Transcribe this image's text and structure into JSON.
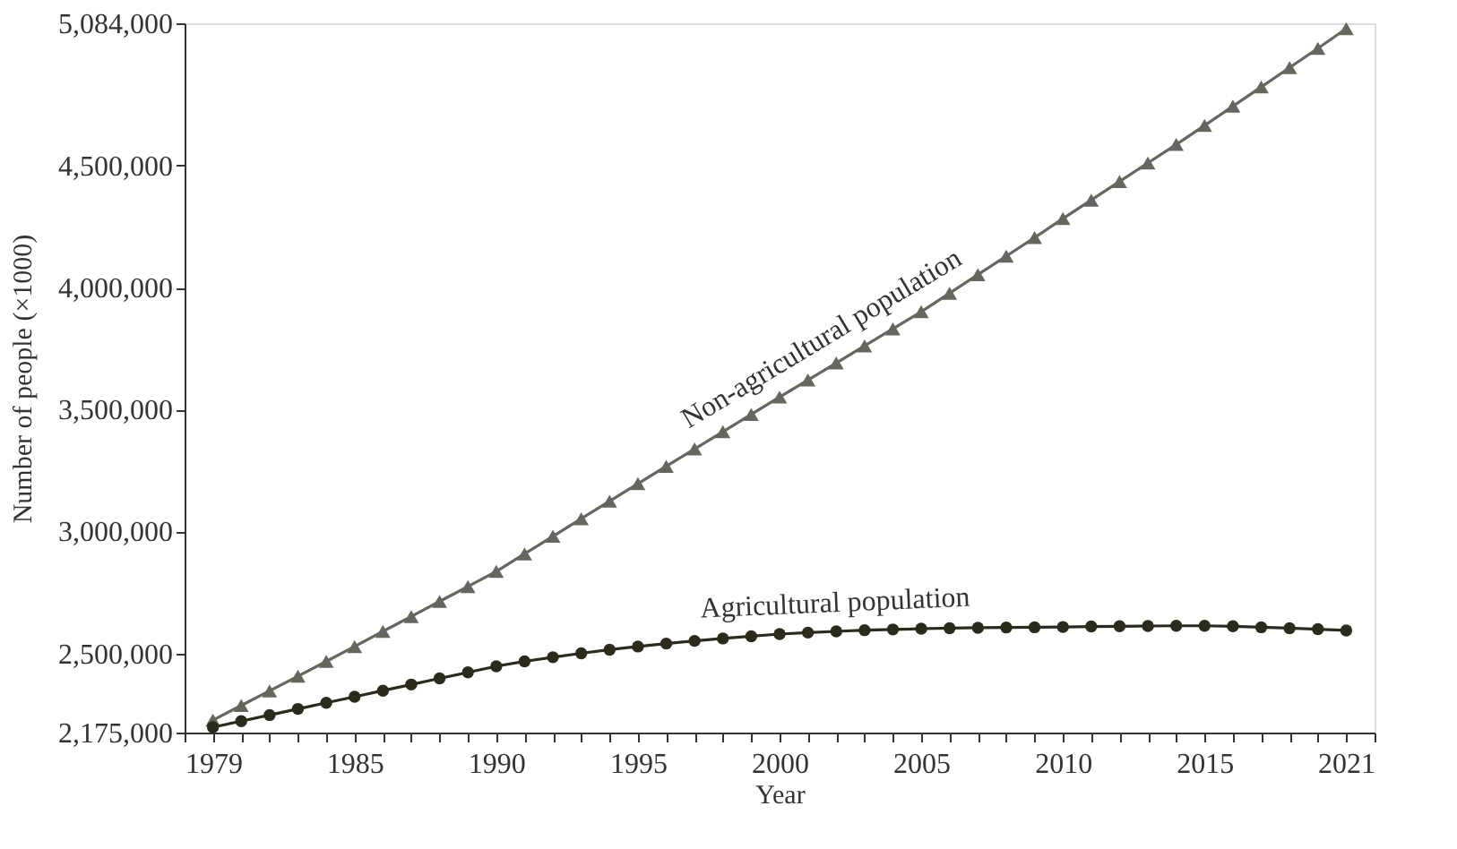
{
  "chart_data": {
    "type": "line",
    "xlabel": "Year",
    "ylabel": "Number of people (×1000)",
    "x": [
      1980,
      1981,
      1982,
      1983,
      1984,
      1985,
      1986,
      1987,
      1988,
      1989,
      1990,
      1991,
      1992,
      1993,
      1994,
      1995,
      1996,
      1997,
      1998,
      1999,
      2000,
      2001,
      2002,
      2003,
      2004,
      2005,
      2006,
      2007,
      2008,
      2009,
      2010,
      2011,
      2012,
      2013,
      2014,
      2015,
      2016,
      2017,
      2018,
      2019,
      2020
    ],
    "series": [
      {
        "name": "Non-agricultural population",
        "color": "#66665e",
        "marker": "triangle",
        "values": [
          2226000,
          2286000,
          2346000,
          2406000,
          2467000,
          2528000,
          2590000,
          2651000,
          2713000,
          2774000,
          2836000,
          2908000,
          2980000,
          3052000,
          3124000,
          3196000,
          3267000,
          3338000,
          3409000,
          3480000,
          3551000,
          3621000,
          3691000,
          3761000,
          3831000,
          3901000,
          3977000,
          4053000,
          4129000,
          4205000,
          4283000,
          4359000,
          4435000,
          4511000,
          4587000,
          4665000,
          4744000,
          4823000,
          4902000,
          4981000,
          5062000
        ]
      },
      {
        "name": "Agricultural population",
        "color": "#2b2a1c",
        "marker": "circle",
        "values": [
          2197000,
          2222000,
          2247000,
          2272000,
          2297000,
          2322000,
          2347000,
          2372000,
          2397000,
          2422000,
          2447000,
          2467000,
          2484000,
          2500000,
          2515000,
          2528000,
          2540000,
          2551000,
          2561000,
          2570000,
          2579000,
          2585000,
          2590000,
          2595000,
          2598000,
          2601000,
          2603000,
          2605000,
          2606000,
          2607000,
          2608000,
          2610000,
          2611000,
          2612000,
          2613000,
          2613000,
          2611000,
          2607000,
          2603000,
          2599000,
          2594000
        ]
      }
    ],
    "xlim": [
      1979,
      2021
    ],
    "xticks": [
      1979,
      {
        "value": 1980,
        "label": null
      },
      {
        "value": 1981,
        "label": null
      },
      {
        "value": 1982,
        "label": null
      },
      {
        "value": 1983,
        "label": null
      },
      {
        "value": 1984,
        "label": null
      },
      1985,
      {
        "value": 1986,
        "label": null
      },
      {
        "value": 1987,
        "label": null
      },
      {
        "value": 1988,
        "label": null
      },
      {
        "value": 1989,
        "label": null
      },
      1990,
      {
        "value": 1991,
        "label": null
      },
      {
        "value": 1992,
        "label": null
      },
      {
        "value": 1993,
        "label": null
      },
      {
        "value": 1994,
        "label": null
      },
      1995,
      {
        "value": 1996,
        "label": null
      },
      {
        "value": 1997,
        "label": null
      },
      {
        "value": 1998,
        "label": null
      },
      {
        "value": 1999,
        "label": null
      },
      2000,
      {
        "value": 2001,
        "label": null
      },
      {
        "value": 2002,
        "label": null
      },
      {
        "value": 2003,
        "label": null
      },
      {
        "value": 2004,
        "label": null
      },
      2005,
      {
        "value": 2006,
        "label": null
      },
      {
        "value": 2007,
        "label": null
      },
      {
        "value": 2008,
        "label": null
      },
      {
        "value": 2009,
        "label": null
      },
      2010,
      {
        "value": 2011,
        "label": null
      },
      {
        "value": 2012,
        "label": null
      },
      {
        "value": 2013,
        "label": null
      },
      {
        "value": 2014,
        "label": null
      },
      2015,
      {
        "value": 2016,
        "label": null
      },
      {
        "value": 2017,
        "label": null
      },
      {
        "value": 2018,
        "label": null
      },
      {
        "value": 2019,
        "label": null
      },
      {
        "value": 2020,
        "label": null
      },
      2021
    ],
    "ylim": [
      2175000,
      5084000
    ],
    "yticks": [
      {
        "value": 2175000,
        "label": "2,175,000"
      },
      {
        "value": 2500000,
        "label": "2,500,000"
      },
      {
        "value": 3000000,
        "label": "3,000,000"
      },
      {
        "value": 3500000,
        "label": "3,500,000"
      },
      {
        "value": 4000000,
        "label": "4,000,000"
      },
      {
        "value": 4500000,
        "label": "4,500,000"
      },
      {
        "value": 5084000,
        "label": "5,084,000"
      }
    ],
    "grid": false,
    "line_style": "solid"
  }
}
